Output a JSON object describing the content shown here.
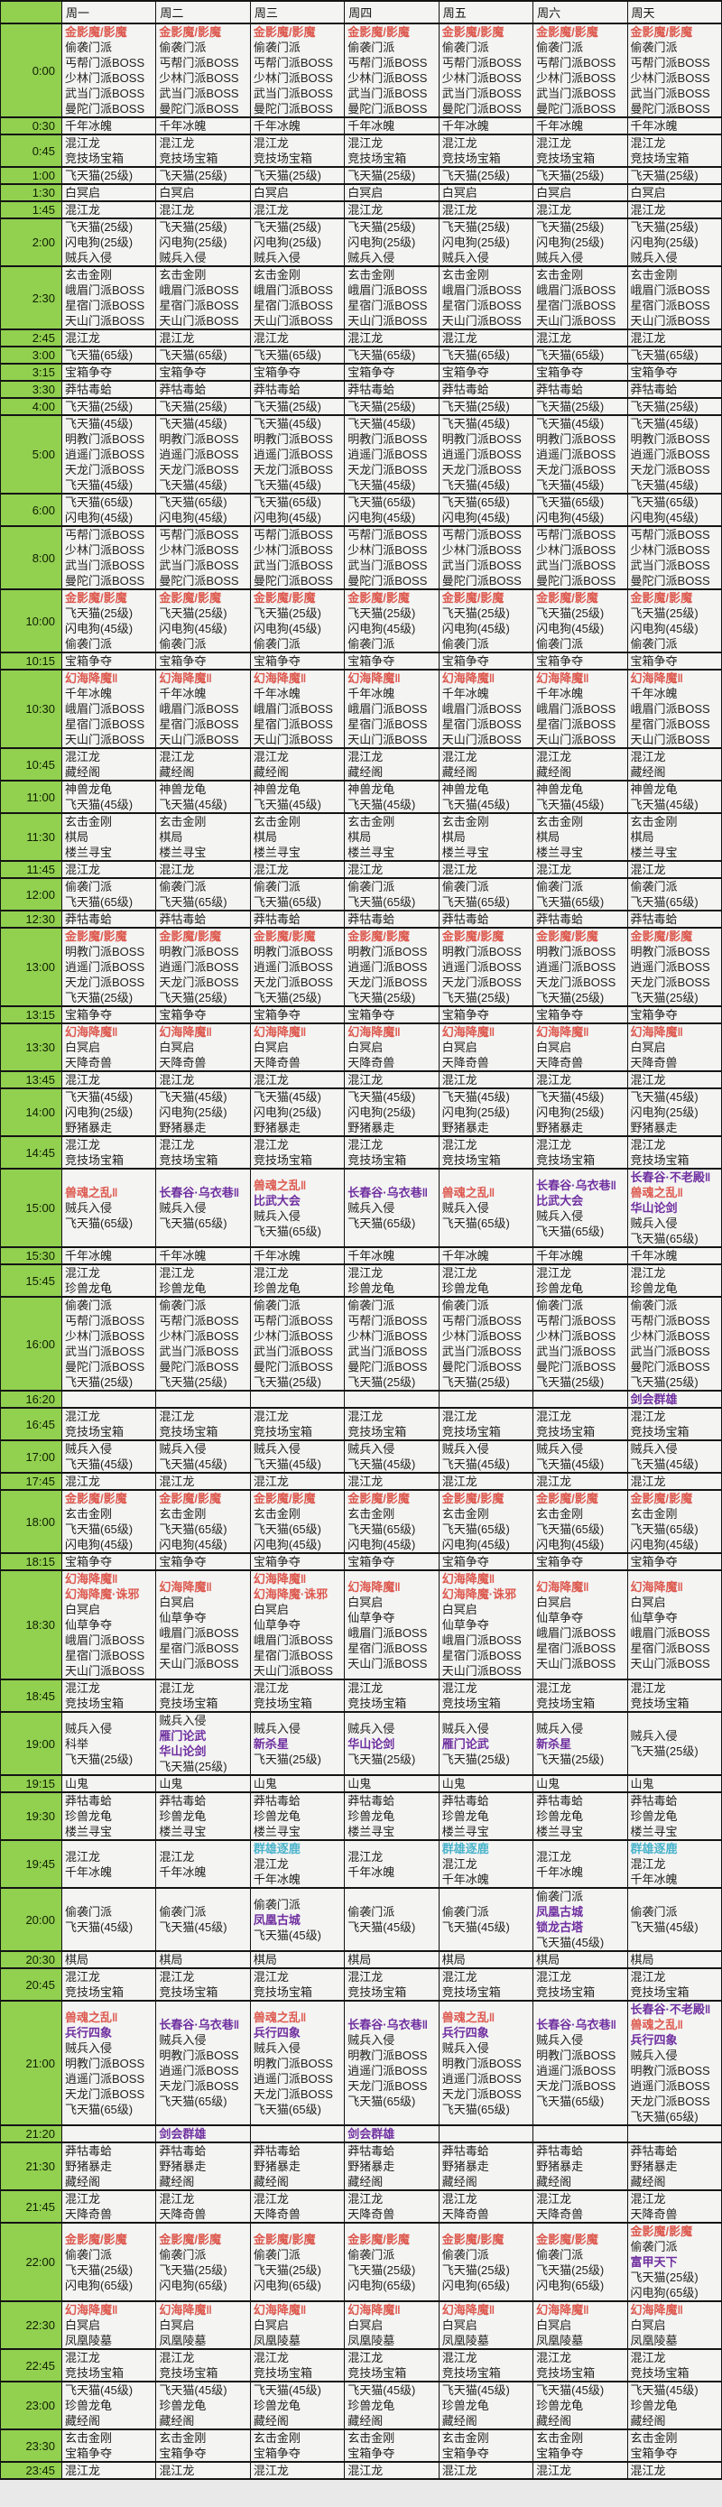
{
  "colors": {
    "time_column_bg": "#92d050",
    "event_red": "#dd5a50",
    "event_purple": "#7030a0",
    "event_cyan": "#4bb4cb",
    "grid_line": "#141414"
  },
  "table": {
    "days": [
      "周一",
      "周二",
      "周三",
      "周四",
      "周五",
      "周六",
      "周天"
    ],
    "rows": [
      {
        "time": "0:00",
        "all": [
          {
            "t": "金影魔/影魔",
            "c": "red"
          },
          "偷袭门派",
          "丐帮门派BOSS",
          "少林门派BOSS",
          "武当门派BOSS",
          "曼陀门派BOSS"
        ]
      },
      {
        "time": "0:30",
        "all": [
          "千年冰魄"
        ]
      },
      {
        "time": "0:45",
        "all": [
          "混江龙",
          "竞技场宝箱"
        ]
      },
      {
        "time": "1:00",
        "all": [
          "飞天猫(25级)"
        ]
      },
      {
        "time": "1:30",
        "all": [
          "白冥启"
        ]
      },
      {
        "time": "1:45",
        "all": [
          "混江龙"
        ]
      },
      {
        "time": "2:00",
        "all": [
          "飞天猫(25级)",
          "闪电狗(25级)",
          "贼兵入侵"
        ]
      },
      {
        "time": "2:30",
        "all": [
          "玄击金刚",
          "峨眉门派BOSS",
          "星宿门派BOSS",
          "天山门派BOSS"
        ]
      },
      {
        "time": "2:45",
        "all": [
          "混江龙"
        ]
      },
      {
        "time": "3:00",
        "all": [
          "飞天猫(65级)"
        ]
      },
      {
        "time": "3:15",
        "all": [
          "宝箱争夺"
        ]
      },
      {
        "time": "3:30",
        "all": [
          "莽牯毒蛤"
        ]
      },
      {
        "time": "4:00",
        "all": [
          "飞天猫(25级)"
        ]
      },
      {
        "time": "5:00",
        "all": [
          "飞天猫(45级)",
          "明教门派BOSS",
          "逍遥门派BOSS",
          "天龙门派BOSS",
          "飞天猫(45级)"
        ]
      },
      {
        "time": "6:00",
        "all": [
          "飞天猫(65级)",
          "闪电狗(45级)"
        ]
      },
      {
        "time": "8:00",
        "all": [
          "丐帮门派BOSS",
          "少林门派BOSS",
          "武当门派BOSS",
          "曼陀门派BOSS"
        ]
      },
      {
        "time": "10:00",
        "all": [
          {
            "t": "金影魔/影魔",
            "c": "red"
          },
          "飞天猫(25级)",
          "闪电狗(45级)",
          "偷袭门派"
        ]
      },
      {
        "time": "10:15",
        "all": [
          "宝箱争夺"
        ]
      },
      {
        "time": "10:30",
        "all": [
          {
            "t": "幻海降魔‖",
            "c": "red"
          },
          "千年冰魄",
          "峨眉门派BOSS",
          "星宿门派BOSS",
          "天山门派BOSS"
        ]
      },
      {
        "time": "10:45",
        "all": [
          "混江龙",
          "藏经阁"
        ]
      },
      {
        "time": "11:00",
        "all": [
          "神兽龙龟",
          "飞天猫(45级)"
        ]
      },
      {
        "time": "11:30",
        "all": [
          "玄击金刚",
          "棋局",
          "楼兰寻宝"
        ]
      },
      {
        "time": "11:45",
        "all": [
          "混江龙"
        ]
      },
      {
        "time": "12:00",
        "all": [
          "偷袭门派",
          "飞天猫(65级)"
        ]
      },
      {
        "time": "12:30",
        "all": [
          "莽牯毒蛤"
        ]
      },
      {
        "time": "13:00",
        "all": [
          {
            "t": "金影魔/影魔",
            "c": "red"
          },
          "明教门派BOSS",
          "逍遥门派BOSS",
          "天龙门派BOSS",
          "飞天猫(25级)"
        ]
      },
      {
        "time": "13:15",
        "all": [
          "宝箱争夺"
        ]
      },
      {
        "time": "13:30",
        "all": [
          {
            "t": "幻海降魔‖",
            "c": "red"
          },
          "白冥启",
          "天降奇兽"
        ]
      },
      {
        "time": "13:45",
        "all": [
          "混江龙"
        ]
      },
      {
        "time": "14:00",
        "all": [
          "飞天猫(45级)",
          "闪电狗(25级)",
          "野猪暴走"
        ]
      },
      {
        "time": "14:45",
        "all": [
          "混江龙",
          "竞技场宝箱"
        ]
      },
      {
        "time": "15:00",
        "cells": [
          [
            {
              "t": "兽魂之乱‖",
              "c": "red"
            },
            "贼兵入侵",
            "飞天猫(65级)"
          ],
          [
            {
              "t": "长春谷·乌衣巷‖",
              "c": "purple"
            },
            "贼兵入侵",
            "飞天猫(65级)"
          ],
          [
            {
              "t": "兽魂之乱‖",
              "c": "red"
            },
            {
              "t": "比武大会",
              "c": "purple"
            },
            "贼兵入侵",
            "飞天猫(65级)"
          ],
          [
            {
              "t": "长春谷·乌衣巷‖",
              "c": "purple"
            },
            "贼兵入侵",
            "飞天猫(65级)"
          ],
          [
            {
              "t": "兽魂之乱‖",
              "c": "red"
            },
            "贼兵入侵",
            "飞天猫(65级)"
          ],
          [
            {
              "t": "长春谷·乌衣巷‖",
              "c": "purple"
            },
            {
              "t": "比武大会",
              "c": "purple"
            },
            "贼兵入侵",
            "飞天猫(65级)"
          ],
          [
            {
              "t": "长春谷·不老殿‖",
              "c": "purple"
            },
            {
              "t": "兽魂之乱‖",
              "c": "red"
            },
            {
              "t": "华山论剑",
              "c": "purple"
            },
            "贼兵入侵",
            "飞天猫(65级)"
          ]
        ]
      },
      {
        "time": "15:30",
        "all": [
          "千年冰魄"
        ]
      },
      {
        "time": "15:45",
        "all": [
          "混江龙",
          "珍兽龙龟"
        ]
      },
      {
        "time": "16:00",
        "all": [
          "偷袭门派",
          "丐帮门派BOSS",
          "少林门派BOSS",
          "武当门派BOSS",
          "曼陀门派BOSS",
          "飞天猫(25级)"
        ]
      },
      {
        "time": "16:20",
        "cells": [
          [],
          [],
          [],
          [],
          [],
          [],
          [
            {
              "t": "剑会群雄",
              "c": "purple"
            }
          ]
        ]
      },
      {
        "time": "16:45",
        "all": [
          "混江龙",
          "竞技场宝箱"
        ]
      },
      {
        "time": "17:00",
        "all": [
          "贼兵入侵",
          "飞天猫(45级)"
        ]
      },
      {
        "time": "17:45",
        "all": [
          "混江龙"
        ]
      },
      {
        "time": "18:00",
        "all": [
          {
            "t": "金影魔/影魔",
            "c": "red"
          },
          "玄击金刚",
          "飞天猫(65级)",
          "闪电狗(45级)"
        ]
      },
      {
        "time": "18:15",
        "all": [
          "宝箱争夺"
        ]
      },
      {
        "time": "18:30",
        "cells": [
          [
            {
              "t": "幻海降魔‖",
              "c": "red"
            },
            {
              "t": "幻海降魔·诛邪",
              "c": "red"
            },
            "白冥启",
            "仙草争夺",
            "峨眉门派BOSS",
            "星宿门派BOSS",
            "天山门派BOSS"
          ],
          [
            {
              "t": "幻海降魔‖",
              "c": "red"
            },
            "白冥启",
            "仙草争夺",
            "峨眉门派BOSS",
            "星宿门派BOSS",
            "天山门派BOSS"
          ],
          [
            {
              "t": "幻海降魔‖",
              "c": "red"
            },
            {
              "t": "幻海降魔·诛邪",
              "c": "red"
            },
            "白冥启",
            "仙草争夺",
            "峨眉门派BOSS",
            "星宿门派BOSS",
            "天山门派BOSS"
          ],
          [
            {
              "t": "幻海降魔‖",
              "c": "red"
            },
            "白冥启",
            "仙草争夺",
            "峨眉门派BOSS",
            "星宿门派BOSS",
            "天山门派BOSS"
          ],
          [
            {
              "t": "幻海降魔‖",
              "c": "red"
            },
            {
              "t": "幻海降魔·诛邪",
              "c": "red"
            },
            "白冥启",
            "仙草争夺",
            "峨眉门派BOSS",
            "星宿门派BOSS",
            "天山门派BOSS"
          ],
          [
            {
              "t": "幻海降魔‖",
              "c": "red"
            },
            "白冥启",
            "仙草争夺",
            "峨眉门派BOSS",
            "星宿门派BOSS",
            "天山门派BOSS"
          ],
          [
            {
              "t": "幻海降魔‖",
              "c": "red"
            },
            "白冥启",
            "仙草争夺",
            "峨眉门派BOSS",
            "星宿门派BOSS",
            "天山门派BOSS"
          ]
        ]
      },
      {
        "time": "18:45",
        "all": [
          "混江龙",
          "竞技场宝箱"
        ]
      },
      {
        "time": "19:00",
        "cells": [
          [
            "贼兵入侵",
            "科举",
            "飞天猫(25级)"
          ],
          [
            "贼兵入侵",
            {
              "t": "雁门论武",
              "c": "purple"
            },
            {
              "t": "华山论剑",
              "c": "purple"
            },
            "飞天猫(25级)"
          ],
          [
            "贼兵入侵",
            {
              "t": "新杀星",
              "c": "purple"
            },
            "飞天猫(25级)"
          ],
          [
            "贼兵入侵",
            {
              "t": "华山论剑",
              "c": "purple"
            },
            "飞天猫(25级)"
          ],
          [
            "贼兵入侵",
            {
              "t": "雁门论武",
              "c": "purple"
            },
            "飞天猫(25级)"
          ],
          [
            "贼兵入侵",
            {
              "t": "新杀星",
              "c": "purple"
            },
            "飞天猫(25级)"
          ],
          [
            "贼兵入侵",
            "飞天猫(25级)"
          ]
        ]
      },
      {
        "time": "19:15",
        "all": [
          "山鬼"
        ]
      },
      {
        "time": "19:30",
        "all": [
          "莽牯毒蛤",
          "珍兽龙龟",
          "楼兰寻宝"
        ]
      },
      {
        "time": "19:45",
        "cells": [
          [
            "混江龙",
            "千年冰魄"
          ],
          [
            "混江龙",
            "千年冰魄"
          ],
          [
            {
              "t": "群雄逐鹿",
              "c": "cyan"
            },
            "混江龙",
            "千年冰魄"
          ],
          [
            "混江龙",
            "千年冰魄"
          ],
          [
            {
              "t": "群雄逐鹿",
              "c": "cyan"
            },
            "混江龙",
            "千年冰魄"
          ],
          [
            "混江龙",
            "千年冰魄"
          ],
          [
            {
              "t": "群雄逐鹿",
              "c": "cyan"
            },
            "混江龙",
            "千年冰魄"
          ]
        ]
      },
      {
        "time": "20:00",
        "cells": [
          [
            "偷袭门派",
            "飞天猫(45级)"
          ],
          [
            "偷袭门派",
            "飞天猫(45级)"
          ],
          [
            "偷袭门派",
            {
              "t": "凤凰古城",
              "c": "purple"
            },
            "飞天猫(45级)"
          ],
          [
            "偷袭门派",
            "飞天猫(45级)"
          ],
          [
            "偷袭门派",
            "飞天猫(45级)"
          ],
          [
            "偷袭门派",
            {
              "t": "凤凰古城",
              "c": "purple"
            },
            {
              "t": "锁龙古塔",
              "c": "purple"
            },
            "飞天猫(45级)"
          ],
          [
            "偷袭门派",
            "飞天猫(45级)"
          ]
        ]
      },
      {
        "time": "20:30",
        "all": [
          "棋局"
        ]
      },
      {
        "time": "20:45",
        "all": [
          "混江龙",
          "竞技场宝箱"
        ]
      },
      {
        "time": "21:00",
        "cells": [
          [
            {
              "t": "兽魂之乱‖",
              "c": "red"
            },
            {
              "t": "兵行四象",
              "c": "purple"
            },
            "贼兵入侵",
            "明教门派BOSS",
            "逍遥门派BOSS",
            "天龙门派BOSS",
            "飞天猫(65级)"
          ],
          [
            {
              "t": "长春谷·乌衣巷‖",
              "c": "purple"
            },
            "贼兵入侵",
            "明教门派BOSS",
            "逍遥门派BOSS",
            "天龙门派BOSS",
            "飞天猫(65级)"
          ],
          [
            {
              "t": "兽魂之乱‖",
              "c": "red"
            },
            {
              "t": "兵行四象",
              "c": "purple"
            },
            "贼兵入侵",
            "明教门派BOSS",
            "逍遥门派BOSS",
            "天龙门派BOSS",
            "飞天猫(65级)"
          ],
          [
            {
              "t": "长春谷·乌衣巷‖",
              "c": "purple"
            },
            "贼兵入侵",
            "明教门派BOSS",
            "逍遥门派BOSS",
            "天龙门派BOSS",
            "飞天猫(65级)"
          ],
          [
            {
              "t": "兽魂之乱‖",
              "c": "red"
            },
            {
              "t": "兵行四象",
              "c": "purple"
            },
            "贼兵入侵",
            "明教门派BOSS",
            "逍遥门派BOSS",
            "天龙门派BOSS",
            "飞天猫(65级)"
          ],
          [
            {
              "t": "长春谷·乌衣巷‖",
              "c": "purple"
            },
            "贼兵入侵",
            "明教门派BOSS",
            "逍遥门派BOSS",
            "天龙门派BOSS",
            "飞天猫(65级)"
          ],
          [
            {
              "t": "长春谷·不老殿‖",
              "c": "purple"
            },
            {
              "t": "兽魂之乱‖",
              "c": "red"
            },
            {
              "t": "兵行四象",
              "c": "purple"
            },
            "贼兵入侵",
            "明教门派BOSS",
            "逍遥门派BOSS",
            "天龙门派BOSS",
            "飞天猫(65级)"
          ]
        ]
      },
      {
        "time": "21:20",
        "cells": [
          [],
          [
            {
              "t": "剑会群雄",
              "c": "purple"
            }
          ],
          [],
          [
            {
              "t": "剑会群雄",
              "c": "purple"
            }
          ],
          [],
          [],
          []
        ]
      },
      {
        "time": "21:30",
        "all": [
          "莽牯毒蛤",
          "野猪暴走",
          "藏经阁"
        ]
      },
      {
        "time": "21:45",
        "all": [
          "混江龙",
          "天降奇兽"
        ]
      },
      {
        "time": "22:00",
        "cells": [
          [
            {
              "t": "金影魔/影魔",
              "c": "red"
            },
            "偷袭门派",
            "飞天猫(25级)",
            "闪电狗(65级)"
          ],
          [
            {
              "t": "金影魔/影魔",
              "c": "red"
            },
            "偷袭门派",
            "飞天猫(25级)",
            "闪电狗(65级)"
          ],
          [
            {
              "t": "金影魔/影魔",
              "c": "red"
            },
            "偷袭门派",
            "飞天猫(25级)",
            "闪电狗(65级)"
          ],
          [
            {
              "t": "金影魔/影魔",
              "c": "red"
            },
            "偷袭门派",
            "飞天猫(25级)",
            "闪电狗(65级)"
          ],
          [
            {
              "t": "金影魔/影魔",
              "c": "red"
            },
            "偷袭门派",
            "飞天猫(25级)",
            "闪电狗(65级)"
          ],
          [
            {
              "t": "金影魔/影魔",
              "c": "red"
            },
            "偷袭门派",
            "飞天猫(25级)",
            "闪电狗(65级)"
          ],
          [
            {
              "t": "金影魔/影魔",
              "c": "red"
            },
            "偷袭门派",
            {
              "t": "富甲天下",
              "c": "purple"
            },
            "飞天猫(25级)",
            "闪电狗(65级)"
          ]
        ]
      },
      {
        "time": "22:30",
        "all": [
          {
            "t": "幻海降魔‖",
            "c": "red"
          },
          "白冥启",
          "凤凰陵墓"
        ]
      },
      {
        "time": "22:45",
        "all": [
          "混江龙",
          "竞技场宝箱"
        ]
      },
      {
        "time": "23:00",
        "all": [
          "飞天猫(45级)",
          "珍兽龙龟",
          "藏经阁"
        ]
      },
      {
        "time": "23:30",
        "all": [
          "玄击金刚",
          "宝箱争夺"
        ]
      },
      {
        "time": "23:45",
        "all": [
          "混江龙"
        ]
      }
    ]
  }
}
